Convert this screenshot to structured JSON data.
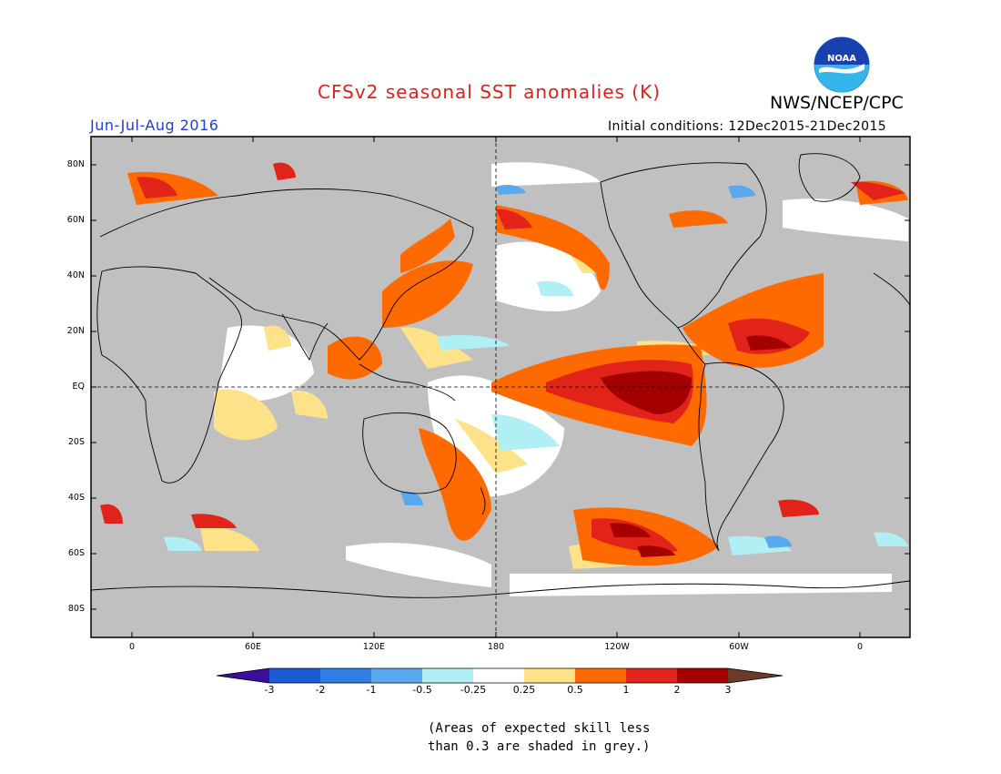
{
  "header": {
    "title": "CFSv2 seasonal SST anomalies (K)",
    "season": "Jun-Jul-Aug 2016",
    "initial_conditions": "Initial conditions: 12Dec2015-21Dec2015",
    "agency": "NWS/NCEP/CPC",
    "logo_text": "NOAA"
  },
  "map": {
    "lat_labels": [
      "80N",
      "60N",
      "40N",
      "20N",
      "EQ",
      "20S",
      "40S",
      "60S",
      "80S"
    ],
    "lon_labels": [
      "0",
      "60E",
      "120E",
      "180",
      "120W",
      "60W",
      "0"
    ],
    "colors": {
      "land": "#c0c0c0",
      "neutral": "#ffffff",
      "warm_025": "#fde28a",
      "warm_05": "#ff6a00",
      "warm_1": "#e2231a",
      "warm_2": "#a50000",
      "cool_025": "#b0f0f5",
      "cool_05": "#5aa8ee"
    }
  },
  "colorbar": {
    "labels": [
      "-3",
      "-2",
      "-1",
      "-0.5",
      "-0.25",
      "0.25",
      "0.5",
      "1",
      "2",
      "3"
    ],
    "colors": [
      "#3d0e9e",
      "#1c5bd4",
      "#2f7de5",
      "#5aa8ee",
      "#b0f0f5",
      "#ffffff",
      "#fde28a",
      "#ff6a00",
      "#e2231a",
      "#a50000",
      "#6b3a2a"
    ]
  },
  "footnote": {
    "line1": "(Areas of expected skill less",
    "line2": "than 0.3 are shaded in grey.)"
  }
}
